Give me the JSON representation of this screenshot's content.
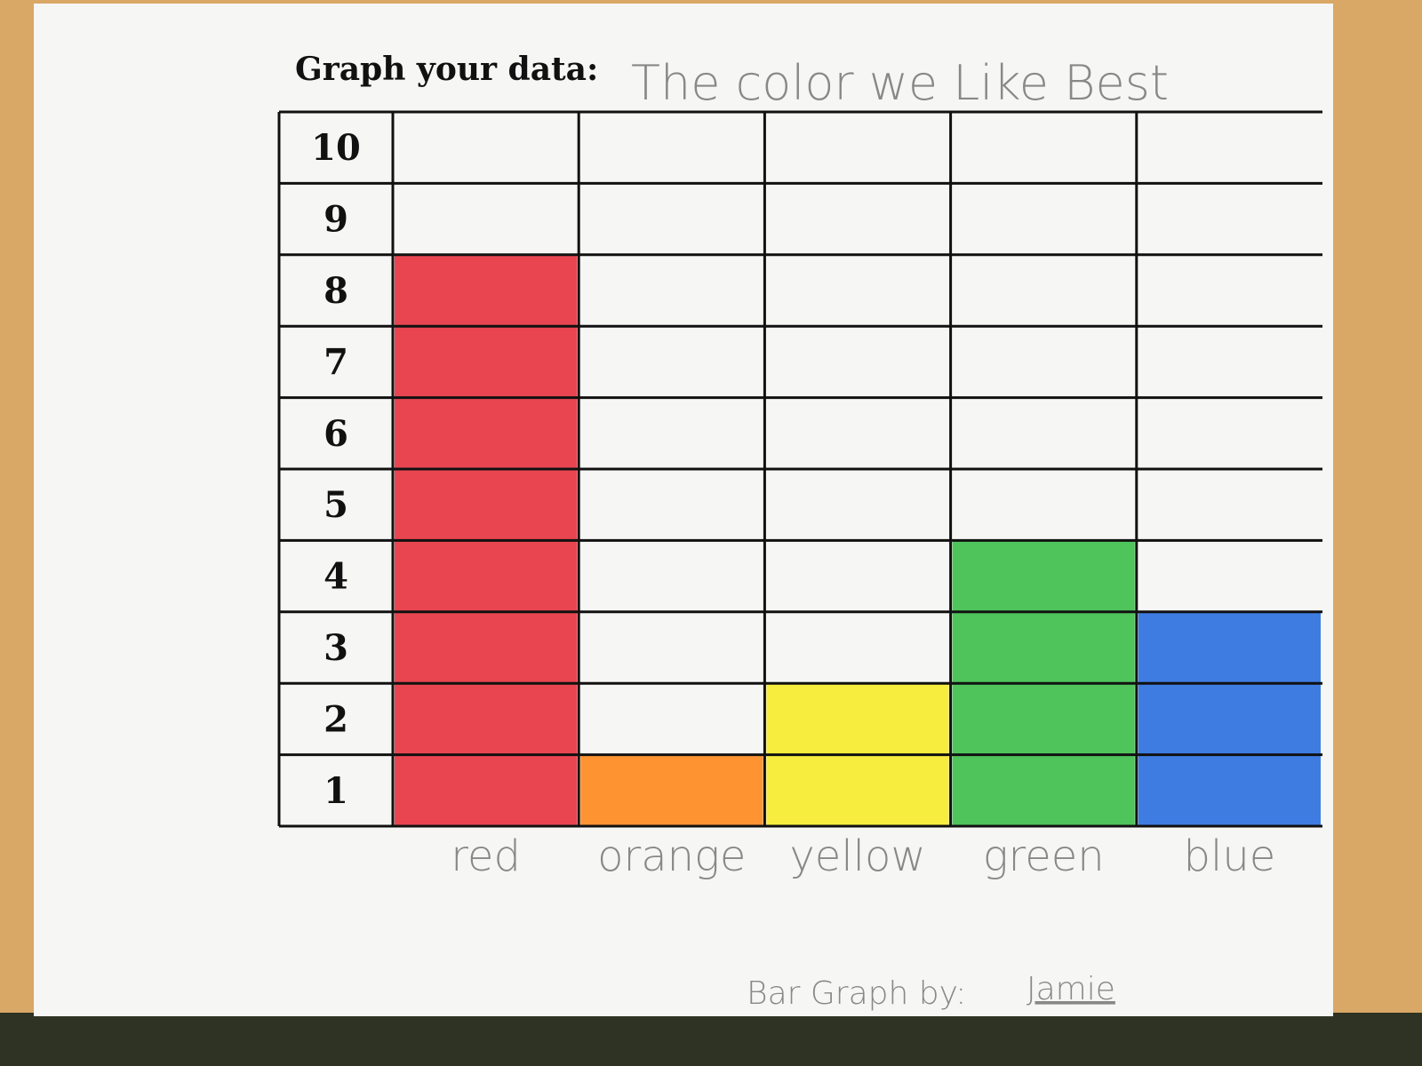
{
  "chart_data": {
    "type": "bar",
    "heading": "Graph your data:",
    "title": "The color we Like Best",
    "categories": [
      "red",
      "orange",
      "yellow",
      "green",
      "blue"
    ],
    "values": [
      8,
      1,
      2,
      4,
      3
    ],
    "colors": [
      "#e8323f",
      "#ff8a1c",
      "#f7ec2a",
      "#3cbf4a",
      "#2a6fe0"
    ],
    "ylim": [
      0,
      10
    ],
    "yticks": [
      1,
      2,
      3,
      4,
      5,
      6,
      7,
      8,
      9,
      10
    ],
    "grid": true,
    "footer": "Bar Graph by:",
    "author": "Jamie"
  }
}
